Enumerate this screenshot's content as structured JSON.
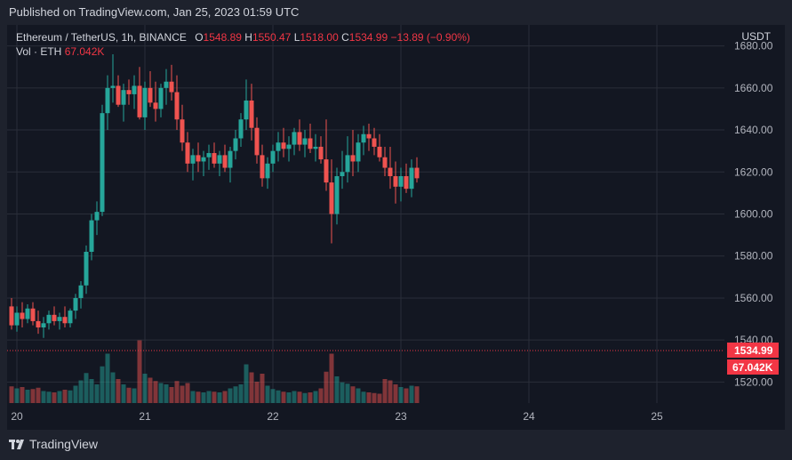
{
  "published": "Published on TradingView.com, Jan 25, 2023 01:59 UTC",
  "legend": {
    "symbol": "Ethereum / TetherUS, 1h, BINANCE",
    "open_label": "O",
    "open": "1548.89",
    "high_label": "H",
    "high": "1550.47",
    "low_label": "L",
    "low": "1518.00",
    "close_label": "C",
    "close": "1534.99",
    "change": "−13.89 (−0.90%)",
    "vol_label": "Vol · ETH",
    "vol": "67.042K"
  },
  "currency": "USDT",
  "footer_brand": "TradingView",
  "colors": {
    "up": "#26a69a",
    "down": "#ef5350",
    "up_vol": "#26a69a",
    "down_vol": "#ef5350",
    "price_tag": "#f23645"
  },
  "icons": [
    "tradingview-logo-icon"
  ],
  "chart_data": {
    "type": "candlestick",
    "symbol": "ETH/USDT",
    "interval": "1h",
    "price_axis": {
      "min": 1510,
      "max": 1690,
      "ticks": [
        1520,
        1540,
        1560,
        1580,
        1600,
        1620,
        1640,
        1660,
        1680
      ]
    },
    "tick_labels": [
      "1520.00",
      "1540.00",
      "1560.00",
      "1580.00",
      "1600.00",
      "1620.00",
      "1640.00",
      "1660.00",
      "1680.00"
    ],
    "time_axis": {
      "labels": [
        "20",
        "21",
        "22",
        "23",
        "24",
        "25"
      ],
      "label_bar_index": [
        1,
        25,
        49,
        73,
        97,
        121
      ]
    },
    "last_price": {
      "value": 1534.99,
      "label": "1534.99"
    },
    "last_volume": {
      "label": "67.042K"
    },
    "volume_axis_max": 120,
    "candles": [
      [
        1556,
        1560,
        1545,
        1547,
        25
      ],
      [
        1547,
        1556,
        1544,
        1553,
        22
      ],
      [
        1553,
        1558,
        1546,
        1550,
        24
      ],
      [
        1550,
        1557,
        1548,
        1555,
        20
      ],
      [
        1555,
        1558,
        1547,
        1549,
        21
      ],
      [
        1549,
        1554,
        1543,
        1546,
        23
      ],
      [
        1546,
        1551,
        1541,
        1548,
        18
      ],
      [
        1548,
        1554,
        1545,
        1552,
        17
      ],
      [
        1552,
        1556,
        1547,
        1549,
        16
      ],
      [
        1549,
        1553,
        1545,
        1551,
        18
      ],
      [
        1551,
        1556,
        1546,
        1548,
        20
      ],
      [
        1548,
        1555,
        1546,
        1554,
        19
      ],
      [
        1554,
        1562,
        1550,
        1560,
        26
      ],
      [
        1560,
        1568,
        1555,
        1566,
        34
      ],
      [
        1566,
        1585,
        1562,
        1582,
        45
      ],
      [
        1582,
        1600,
        1578,
        1597,
        36
      ],
      [
        1597,
        1606,
        1590,
        1601,
        28
      ],
      [
        1601,
        1652,
        1599,
        1648,
        55
      ],
      [
        1648,
        1666,
        1640,
        1660,
        74
      ],
      [
        1660,
        1676,
        1653,
        1661,
        46
      ],
      [
        1661,
        1666,
        1651,
        1652,
        36
      ],
      [
        1652,
        1662,
        1644,
        1659,
        28
      ],
      [
        1659,
        1664,
        1652,
        1657,
        23
      ],
      [
        1657,
        1666,
        1650,
        1661,
        22
      ],
      [
        1661,
        1670,
        1645,
        1646,
        94
      ],
      [
        1646,
        1663,
        1640,
        1660,
        44
      ],
      [
        1660,
        1668,
        1651,
        1653,
        38
      ],
      [
        1653,
        1663,
        1644,
        1650,
        33
      ],
      [
        1650,
        1662,
        1646,
        1660,
        30
      ],
      [
        1660,
        1669,
        1652,
        1663,
        28
      ],
      [
        1663,
        1671,
        1654,
        1658,
        24
      ],
      [
        1658,
        1666,
        1640,
        1645,
        33
      ],
      [
        1645,
        1652,
        1630,
        1634,
        26
      ],
      [
        1634,
        1639,
        1620,
        1624,
        30
      ],
      [
        1624,
        1631,
        1616,
        1628,
        18
      ],
      [
        1628,
        1634,
        1620,
        1625,
        17
      ],
      [
        1625,
        1630,
        1618,
        1627,
        16
      ],
      [
        1627,
        1633,
        1621,
        1629,
        18
      ],
      [
        1629,
        1634,
        1622,
        1624,
        17
      ],
      [
        1624,
        1630,
        1618,
        1628,
        16
      ],
      [
        1628,
        1633,
        1620,
        1622,
        18
      ],
      [
        1622,
        1632,
        1615,
        1630,
        22
      ],
      [
        1630,
        1640,
        1626,
        1636,
        25
      ],
      [
        1636,
        1648,
        1632,
        1645,
        28
      ],
      [
        1645,
        1664,
        1640,
        1654,
        58
      ],
      [
        1654,
        1662,
        1635,
        1641,
        46
      ],
      [
        1641,
        1646,
        1624,
        1628,
        32
      ],
      [
        1628,
        1633,
        1613,
        1617,
        44
      ],
      [
        1617,
        1627,
        1612,
        1624,
        26
      ],
      [
        1624,
        1633,
        1620,
        1630,
        21
      ],
      [
        1630,
        1639,
        1625,
        1634,
        19
      ],
      [
        1634,
        1641,
        1627,
        1631,
        17
      ],
      [
        1631,
        1637,
        1625,
        1633,
        16
      ],
      [
        1633,
        1641,
        1628,
        1639,
        18
      ],
      [
        1639,
        1645,
        1630,
        1633,
        17
      ],
      [
        1633,
        1640,
        1627,
        1636,
        15
      ],
      [
        1636,
        1643,
        1629,
        1631,
        16
      ],
      [
        1631,
        1638,
        1625,
        1632,
        18
      ],
      [
        1632,
        1637,
        1624,
        1626,
        22
      ],
      [
        1626,
        1645,
        1611,
        1615,
        47
      ],
      [
        1615,
        1626,
        1586,
        1600,
        74
      ],
      [
        1600,
        1622,
        1595,
        1618,
        40
      ],
      [
        1618,
        1630,
        1612,
        1620,
        31
      ],
      [
        1620,
        1637,
        1615,
        1628,
        29
      ],
      [
        1628,
        1640,
        1618,
        1625,
        25
      ],
      [
        1625,
        1638,
        1620,
        1634,
        22
      ],
      [
        1634,
        1642,
        1628,
        1638,
        17
      ],
      [
        1638,
        1643,
        1630,
        1636,
        16
      ],
      [
        1636,
        1641,
        1628,
        1632,
        15
      ],
      [
        1632,
        1638,
        1625,
        1627,
        14
      ],
      [
        1627,
        1632,
        1618,
        1622,
        36
      ],
      [
        1622,
        1632,
        1612,
        1618,
        34
      ],
      [
        1618,
        1625,
        1605,
        1613,
        28
      ],
      [
        1613,
        1622,
        1606,
        1618,
        24
      ],
      [
        1618,
        1624,
        1610,
        1612,
        22
      ],
      [
        1612,
        1626,
        1608,
        1622,
        26
      ],
      [
        1622,
        1627,
        1615,
        1617,
        25
      ]
    ]
  }
}
